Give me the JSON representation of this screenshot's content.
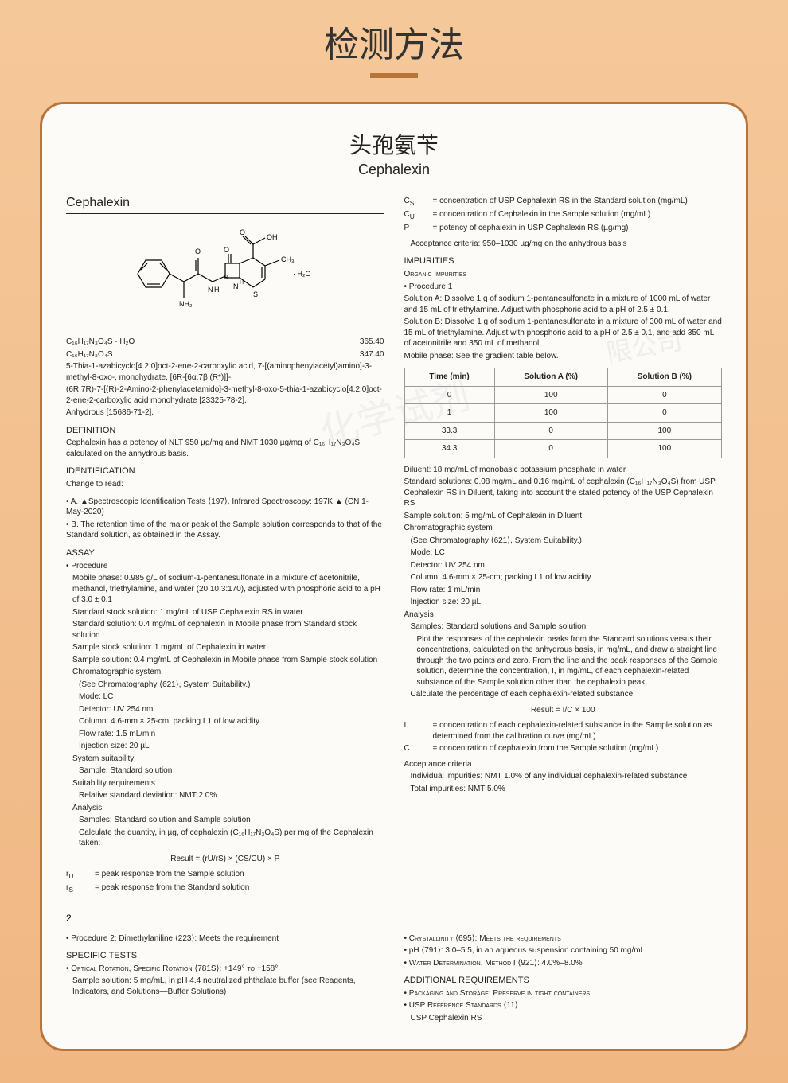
{
  "page": {
    "title_cn": "检测方法",
    "doc_title_cn": "头孢氨苄",
    "doc_title_en": "Cephalexin",
    "monograph_name": "Cephalexin"
  },
  "formulas": {
    "hydrate": "C₁₆H₁₇N₃O₄S · H₂O",
    "hydrate_mw": "365.40",
    "anhydrous": "C₁₆H₁₇N₃O₄S",
    "anhydrous_mw": "347.40"
  },
  "chemical_names": {
    "name1": "5-Thia-1-azabicyclo[4.2.0]oct-2-ene-2-carboxylic acid, 7-[(aminophenylacetyl)amino]-3-methyl-8-oxo-, monohydrate, [6R-[6α,7β (R*)]]-;",
    "name2": "(6R,7R)-7-[(R)-2-Amino-2-phenylacetamido]-3-methyl-8-oxo-5-thia-1-azabicyclo[4.2.0]oct-2-ene-2-carboxylic acid monohydrate   [23325-78-2].",
    "anhydrous_cas": "Anhydrous   [15686-71-2]."
  },
  "definition": {
    "head": "DEFINITION",
    "text": "Cephalexin has a potency of NLT 950 µg/mg and NMT 1030 µg/mg of C₁₆H₁₇N₃O₄S, calculated on the anhydrous basis."
  },
  "identification": {
    "head": "IDENTIFICATION",
    "change": "Change to read:",
    "a": "• A. ▲Spectroscopic Identification Tests ⟨197⟩, Infrared Spectroscopy: 197K.▲ (CN 1-May-2020)",
    "b": "• B. The retention time of the major peak of the Sample solution corresponds to that of the Standard solution, as obtained in the Assay."
  },
  "assay": {
    "head": "ASSAY",
    "procedure": "• Procedure",
    "mobile_phase": "Mobile phase: 0.985 g/L of sodium-1-pentanesulfonate in a mixture of acetonitrile, methanol, triethylamine, and water (20:10:3:170), adjusted with phosphoric acid to a pH of 3.0 ± 0.1",
    "std_stock": "Standard stock solution: 1 mg/mL of USP Cephalexin RS in water",
    "std_sol": "Standard solution: 0.4 mg/mL of cephalexin in Mobile phase from Standard stock solution",
    "sample_stock": "Sample stock solution: 1 mg/mL of Cephalexin in water",
    "sample_sol": "Sample solution: 0.4 mg/mL of Cephalexin in Mobile phase from Sample stock solution",
    "chrom_sys": "Chromatographic system",
    "chrom_ref": "(See Chromatography ⟨621⟩, System Suitability.)",
    "mode": "Mode: LC",
    "detector": "Detector: UV 254 nm",
    "column": "Column: 4.6-mm × 25-cm; packing L1 of low acidity",
    "flow": "Flow rate: 1.5 mL/min",
    "inj": "Injection size: 20 µL",
    "sys_suit": "System suitability",
    "sample_std": "Sample: Standard solution",
    "suit_req": "Suitability requirements",
    "rsd": "Relative standard deviation: NMT 2.0%",
    "analysis": "Analysis",
    "samples": "Samples: Standard solution and Sample solution",
    "calc": "Calculate the quantity, in µg, of cephalexin (C₁₆H₁₇N₃O₄S) per mg of the Cephalexin taken:",
    "result": "Result = (rU/rS) × (CS/CU) × P",
    "ru": "= peak response from the Sample solution",
    "rs": "= peak response from the Standard solution"
  },
  "col2": {
    "cs": "= concentration of USP Cephalexin RS in the Standard solution (mg/mL)",
    "cu": "= concentration of Cephalexin in the Sample solution (mg/mL)",
    "p": "= potency of cephalexin in USP Cephalexin RS (µg/mg)",
    "acceptance": "Acceptance criteria: 950–1030 µg/mg on the anhydrous basis",
    "impurities_head": "IMPURITIES",
    "organic": "Organic Impurities",
    "proc1": "• Procedure 1",
    "solA": "Solution A: Dissolve 1 g of sodium 1-pentanesulfonate in a mixture of 1000 mL of water and 15 mL of triethylamine. Adjust with phosphoric acid to a pH of 2.5 ± 0.1.",
    "solB": "Solution B: Dissolve 1 g of sodium 1-pentanesulfonate in a mixture of 300 mL of water and 15 mL of triethylamine. Adjust with phosphoric acid to a pH of 2.5 ± 0.1, and add 350 mL of acetonitrile and 350 mL of methanol.",
    "mobile": "Mobile phase: See the gradient table below.",
    "diluent": "Diluent: 18 mg/mL of monobasic potassium phosphate in water",
    "std_sols": "Standard solutions: 0.08 mg/mL and 0.16 mg/mL of cephalexin (C₁₆H₁₇N₃O₄S) from USP Cephalexin RS in Diluent, taking into account the stated potency of the USP Cephalexin RS",
    "sample_sol": "Sample solution: 5 mg/mL of Cephalexin in Diluent",
    "chrom_sys": "Chromatographic system",
    "chrom_ref": "(See Chromatography ⟨621⟩, System Suitability.)",
    "mode": "Mode: LC",
    "detector": "Detector: UV 254 nm",
    "column": "Column: 4.6-mm × 25-cm; packing L1 of low acidity",
    "flow": "Flow rate: 1 mL/min",
    "inj": "Injection size: 20 µL",
    "analysis": "Analysis",
    "samples": "Samples: Standard solutions and Sample solution",
    "plot": "Plot the responses of the cephalexin peaks from the Standard solutions versus their concentrations, calculated on the anhydrous basis, in mg/mL, and draw a straight line through the two points and zero. From the line and the peak responses of the Sample solution, determine the concentration, I, in mg/mL, of each cephalexin-related substance of the Sample solution other than the cephalexin peak.",
    "calc2": "Calculate the percentage of each cephalexin-related substance:",
    "result2": "Result = I/C × 100",
    "i_def": "= concentration of each cephalexin-related substance in the Sample solution as determined from the calibration curve (mg/mL)",
    "c_def": "= concentration of cephalexin from the Sample solution (mg/mL)",
    "acc_head": "Acceptance criteria",
    "indiv": "Individual impurities: NMT 1.0% of any individual cephalexin-related substance",
    "total": "Total impurities: NMT 5.0%"
  },
  "gradient": {
    "headers": [
      "Time (min)",
      "Solution A (%)",
      "Solution B (%)"
    ],
    "rows": [
      [
        "0",
        "100",
        "0"
      ],
      [
        "1",
        "100",
        "0"
      ],
      [
        "33.3",
        "0",
        "100"
      ],
      [
        "34.3",
        "0",
        "100"
      ]
    ]
  },
  "page2": {
    "num": "2",
    "proc2": "• Procedure 2: Dimethylaniline ⟨223⟩: Meets the requirement",
    "specific_head": "SPECIFIC TESTS",
    "optical": "• Optical Rotation, Specific Rotation ⟨781S⟩: +149° to +158°",
    "sample_sol": "Sample solution: 5 mg/mL, in pH 4.4 neutralized phthalate buffer (see Reagents, Indicators, and Solutions—Buffer Solutions)",
    "cryst": "• Crystallinity ⟨695⟩: Meets the requirements",
    "ph": "• pH ⟨791⟩: 3.0–5.5, in an aqueous suspension containing 50 mg/mL",
    "water": "• Water Determination, Method I ⟨921⟩: 4.0%–8.0%",
    "addl_head": "ADDITIONAL REQUIREMENTS",
    "packaging": "• Packaging and Storage: Preserve in tight containers.",
    "usp_ref": "• USP Reference Standards ⟨11⟩",
    "usp_rs": "USP Cephalexin RS"
  },
  "watermark": "化学试剂",
  "watermark2": "限公司"
}
